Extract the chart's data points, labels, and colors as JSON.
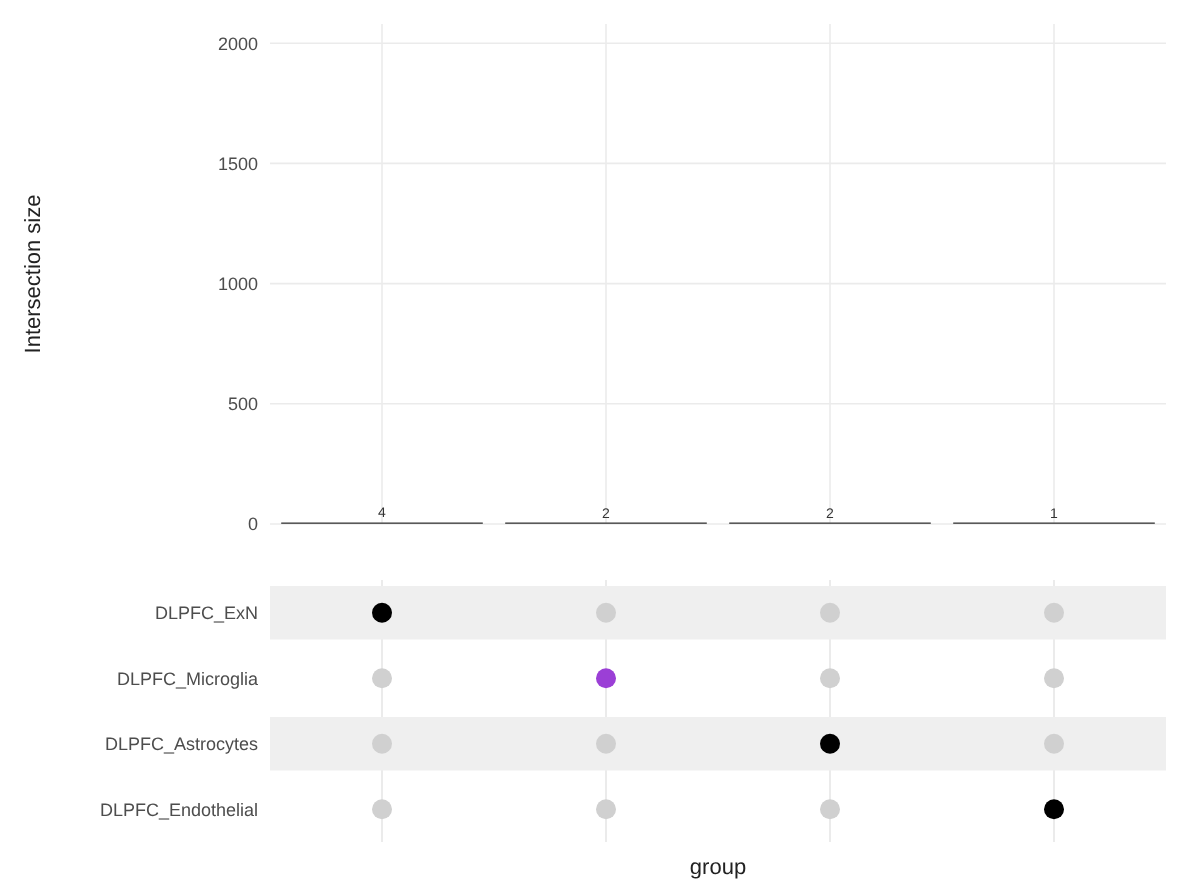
{
  "chart_data": [
    {
      "type": "bar",
      "ylabel": "Intersection size",
      "categories": [
        null,
        null,
        null,
        null
      ],
      "values": [
        4,
        2,
        2,
        1
      ],
      "color": "#595959",
      "ylim": [
        0,
        2080
      ],
      "yticks": [
        0,
        500,
        1000,
        1500,
        2000
      ],
      "grid": true,
      "data_labels": true
    },
    {
      "type": "other",
      "xlabel": "group",
      "categories": [
        null,
        null,
        null,
        null
      ],
      "y_categories": [
        "DLPFC_ExN",
        "DLPFC_Microglia",
        "DLPFC_Astrocytes",
        "DLPFC_Endothelial"
      ],
      "colors": [
        "#000000",
        "#d0d0d0",
        "#d0d0d0",
        "#d0d0d0",
        "#d0d0d0",
        "#9b3fd6",
        "#d0d0d0",
        "#d0d0d0",
        "#d0d0d0",
        "#d0d0d0",
        "#000000",
        "#d0d0d0",
        "#d0d0d0",
        "#d0d0d0",
        "#d0d0d0",
        "#000000"
      ]
    }
  ]
}
